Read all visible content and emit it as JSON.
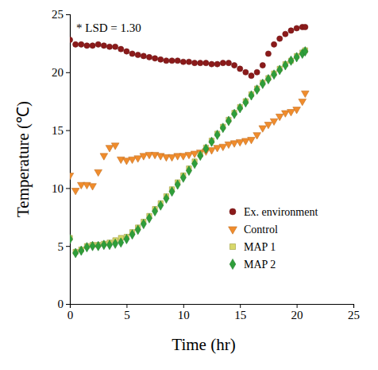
{
  "chart_data": {
    "type": "scatter",
    "x_label": "Time (hr)",
    "y_label": "Temperature (℃)",
    "annotations": [
      {
        "text": "* LSD = 1.30"
      }
    ],
    "xlim": [
      0,
      25
    ],
    "xticks": [
      0,
      5,
      10,
      15,
      20,
      25
    ],
    "ylim": [
      0,
      25
    ],
    "yticks": [
      0,
      5,
      10,
      15,
      20,
      25
    ],
    "grid": false,
    "legend": "lower right",
    "x": [
      0,
      0.5,
      1,
      1.5,
      2,
      2.5,
      3,
      3.5,
      4,
      4.5,
      5,
      5.5,
      6,
      6.5,
      7,
      7.5,
      8,
      8.5,
      9,
      9.5,
      10,
      10.5,
      11,
      11.5,
      12,
      12.5,
      13,
      13.5,
      14,
      14.5,
      15,
      15.5,
      16,
      16.5,
      17,
      17.5,
      18,
      18.5,
      19,
      19.5,
      20,
      20.5,
      20.75
    ],
    "series": [
      {
        "name": "Ex. environment",
        "color": "#8b1a1a",
        "marker": "circle",
        "values": [
          22.8,
          22.4,
          22.4,
          22.3,
          22.3,
          22.4,
          22.3,
          22.2,
          22.2,
          22.0,
          21.8,
          21.6,
          21.5,
          21.4,
          21.3,
          21.2,
          21.1,
          21.0,
          21.0,
          21.0,
          20.9,
          20.9,
          20.8,
          20.8,
          20.8,
          20.7,
          20.7,
          20.8,
          20.8,
          20.6,
          20.3,
          20.0,
          19.7,
          20.0,
          20.6,
          21.6,
          22.4,
          22.9,
          23.3,
          23.6,
          23.8,
          23.9,
          23.9
        ]
      },
      {
        "name": "Control",
        "color": "#f08c2c",
        "marker": "triangle-down",
        "values": [
          11.1,
          9.8,
          10.3,
          10.3,
          10.2,
          11.4,
          12.8,
          13.5,
          13.7,
          12.5,
          12.4,
          12.5,
          12.6,
          12.8,
          12.9,
          12.9,
          12.8,
          12.7,
          12.7,
          12.8,
          12.8,
          12.9,
          13.0,
          13.1,
          13.2,
          13.3,
          13.5,
          13.6,
          13.8,
          13.9,
          14.0,
          14.1,
          14.2,
          14.6,
          15.2,
          15.5,
          15.8,
          16.2,
          16.5,
          16.6,
          16.8,
          17.5,
          18.2
        ]
      },
      {
        "name": "MAP 1",
        "color": "#d8d86a",
        "marker": "square",
        "values": [
          5.7,
          4.5,
          4.7,
          5.0,
          5.1,
          5.1,
          5.2,
          5.3,
          5.5,
          5.7,
          5.8,
          6.2,
          6.6,
          7.1,
          7.6,
          8.2,
          8.7,
          9.3,
          9.9,
          10.5,
          11.1,
          11.7,
          12.3,
          12.9,
          13.5,
          14.1,
          14.7,
          15.3,
          15.9,
          16.5,
          17.0,
          17.5,
          18.1,
          18.6,
          19.1,
          19.5,
          19.9,
          20.3,
          20.7,
          21.0,
          21.4,
          21.7,
          21.9
        ]
      },
      {
        "name": "MAP 2",
        "color": "#2e9e3a",
        "marker": "diamond",
        "values": [
          5.6,
          4.4,
          4.6,
          4.9,
          5.0,
          5.0,
          5.1,
          5.1,
          5.2,
          5.3,
          5.6,
          6.0,
          6.4,
          6.9,
          7.4,
          8.0,
          8.5,
          9.1,
          9.7,
          10.3,
          10.9,
          11.5,
          12.1,
          12.8,
          13.4,
          14.0,
          14.6,
          15.2,
          15.8,
          16.4,
          16.9,
          17.4,
          18.0,
          18.5,
          19.0,
          19.4,
          19.8,
          20.2,
          20.6,
          21.0,
          21.3,
          21.6,
          21.8
        ]
      }
    ]
  }
}
